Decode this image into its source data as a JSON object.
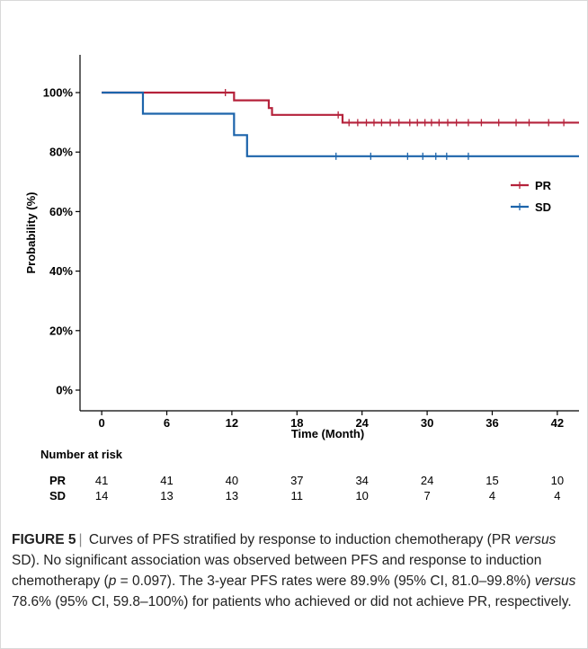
{
  "chart_data": {
    "type": "line",
    "subtype": "kaplan-meier",
    "xlabel": "Time (Month)",
    "ylabel": "Probability (%)",
    "xlim": [
      -2,
      44
    ],
    "ylim": [
      0,
      100
    ],
    "x_ticks": [
      0,
      6,
      12,
      18,
      24,
      30,
      36,
      42
    ],
    "y_ticks": [
      0,
      20,
      40,
      60,
      80,
      100
    ],
    "y_tick_labels": [
      "0%",
      "20%",
      "40%",
      "60%",
      "80%",
      "100%"
    ],
    "legend_position": "right",
    "series": [
      {
        "name": "PR",
        "color": "#b5223b",
        "steps": [
          [
            0,
            100
          ],
          [
            12.2,
            97.4
          ],
          [
            15.4,
            94.8
          ],
          [
            15.7,
            92.5
          ],
          [
            22.2,
            89.9
          ],
          [
            44,
            89.9
          ]
        ],
        "censored": [
          [
            11.4,
            100
          ],
          [
            21.8,
            92.5
          ],
          [
            22.8,
            89.9
          ],
          [
            23.6,
            89.9
          ],
          [
            24.4,
            89.9
          ],
          [
            25.1,
            89.9
          ],
          [
            25.8,
            89.9
          ],
          [
            26.6,
            89.9
          ],
          [
            27.4,
            89.9
          ],
          [
            28.4,
            89.9
          ],
          [
            29.1,
            89.9
          ],
          [
            29.8,
            89.9
          ],
          [
            30.4,
            89.9
          ],
          [
            31.1,
            89.9
          ],
          [
            31.9,
            89.9
          ],
          [
            32.7,
            89.9
          ],
          [
            33.8,
            89.9
          ],
          [
            35.0,
            89.9
          ],
          [
            36.6,
            89.9
          ],
          [
            38.2,
            89.9
          ],
          [
            39.4,
            89.9
          ],
          [
            41.2,
            89.9
          ],
          [
            42.6,
            89.9
          ]
        ]
      },
      {
        "name": "SD",
        "color": "#1c64ab",
        "steps": [
          [
            0,
            100
          ],
          [
            3.8,
            92.9
          ],
          [
            12.2,
            85.7
          ],
          [
            13.4,
            78.6
          ],
          [
            44,
            78.6
          ]
        ],
        "censored": [
          [
            21.6,
            78.6
          ],
          [
            24.8,
            78.6
          ],
          [
            28.2,
            78.6
          ],
          [
            29.6,
            78.6
          ],
          [
            30.8,
            78.6
          ],
          [
            31.8,
            78.6
          ],
          [
            33.8,
            78.6
          ]
        ]
      }
    ],
    "risk_table": {
      "title": "Number at risk",
      "x": [
        0,
        6,
        12,
        18,
        24,
        30,
        36,
        42
      ],
      "rows": [
        {
          "name": "PR",
          "values": [
            41,
            41,
            40,
            37,
            34,
            24,
            15,
            10
          ]
        },
        {
          "name": "SD",
          "values": [
            14,
            13,
            13,
            11,
            10,
            7,
            4,
            4
          ]
        }
      ]
    }
  },
  "caption": {
    "label": "FIGURE 5",
    "sep": "|",
    "part1": " Curves of PFS stratified by response to induction chemotherapy (PR ",
    "versus1": "versus",
    "part2": " SD). No significant association was observed between PFS and response to induction chemotherapy (",
    "p": "p",
    "part3": " = 0.097). The 3-year PFS rates were 89.9% (95% CI, 81.0–99.8%) ",
    "versus2": "versus",
    "part4": " 78.6% (95% CI, 59.8–100%) for patients who achieved or did not achieve PR, respectively."
  }
}
